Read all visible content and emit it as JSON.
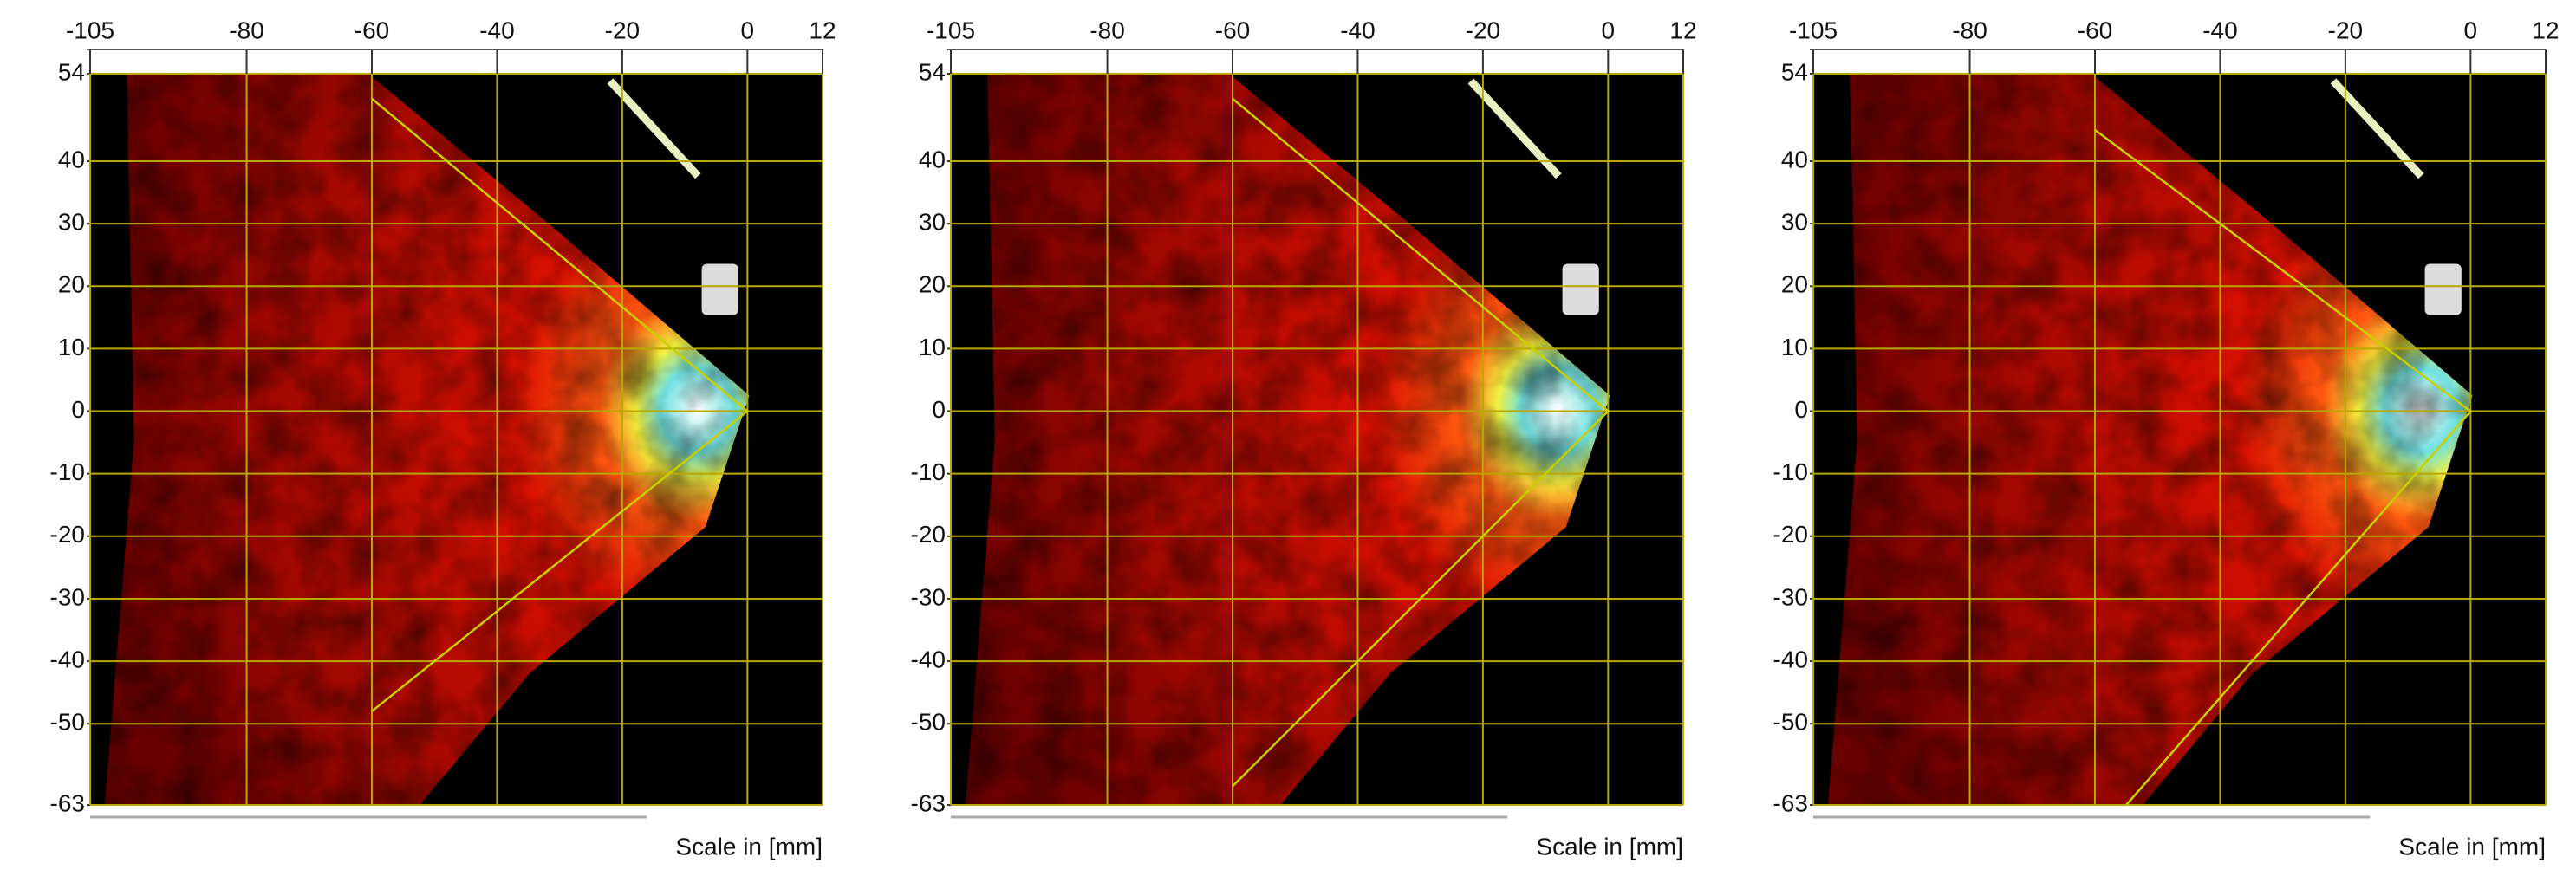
{
  "chart_data": [
    {
      "type": "heatmap",
      "x_label": "Scale in [mm]",
      "xlim": [
        -105,
        12
      ],
      "ylim": [
        -63,
        54
      ],
      "xticks": [
        -105,
        -80,
        -60,
        -40,
        -20,
        0,
        12
      ],
      "yticks": [
        54,
        40,
        30,
        20,
        10,
        0,
        -10,
        -20,
        -30,
        -40,
        -50,
        -63
      ],
      "grid": true,
      "grid_color": "#b8a800",
      "x": [
        -60,
        0,
        -60
      ],
      "values": [
        50,
        0,
        -48
      ],
      "color": "#c8d000"
    },
    {
      "type": "heatmap",
      "x_label": "Scale in [mm]",
      "xlim": [
        -105,
        12
      ],
      "ylim": [
        -63,
        54
      ],
      "xticks": [
        -105,
        -80,
        -60,
        -40,
        -20,
        0,
        12
      ],
      "yticks": [
        54,
        40,
        30,
        20,
        10,
        0,
        -10,
        -20,
        -30,
        -40,
        -50,
        -63
      ],
      "grid": true,
      "grid_color": "#b8a800",
      "x": [
        -60,
        0,
        -60
      ],
      "values": [
        50,
        0,
        -60
      ],
      "color": "#c8d000"
    },
    {
      "type": "heatmap",
      "x_label": "Scale in [mm]",
      "xlim": [
        -105,
        12
      ],
      "ylim": [
        -63,
        54
      ],
      "xticks": [
        -105,
        -80,
        -60,
        -40,
        -20,
        0,
        12
      ],
      "yticks": [
        54,
        40,
        30,
        20,
        10,
        0,
        -10,
        -20,
        -30,
        -40,
        -50,
        -63
      ],
      "grid": true,
      "grid_color": "#b8a800",
      "x": [
        -60,
        0,
        -55
      ],
      "values": [
        45,
        0,
        -63
      ],
      "color": "#c8d000"
    }
  ]
}
